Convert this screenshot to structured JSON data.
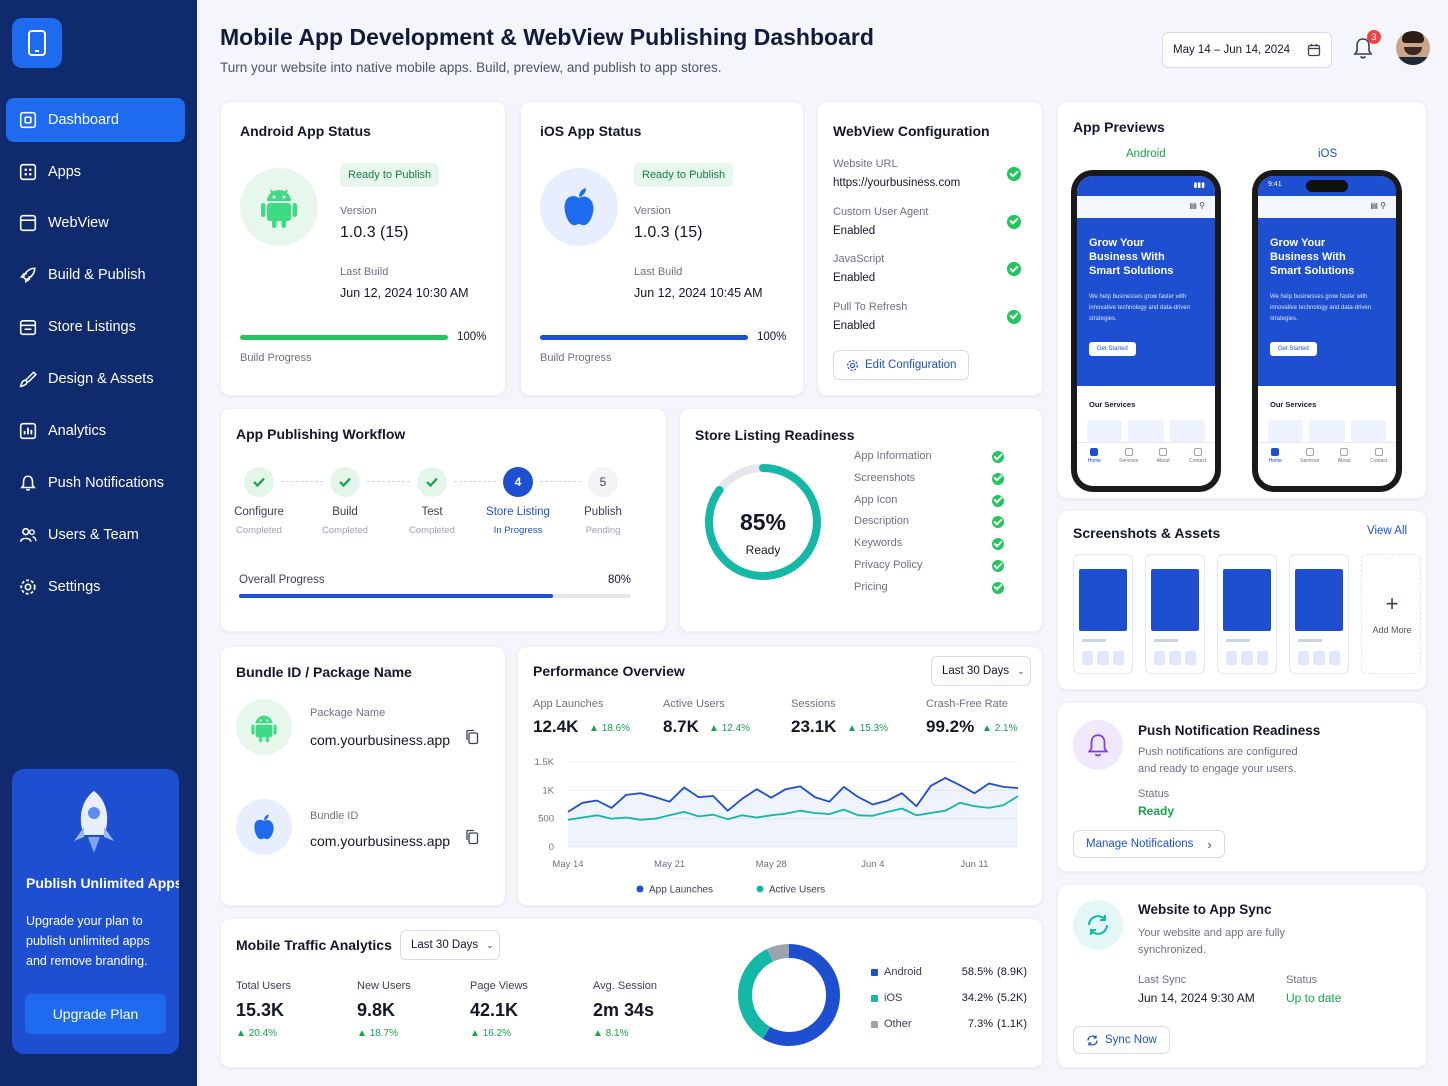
{
  "header": {
    "title": "Mobile App Development & WebView Publishing Dashboard",
    "subtitle": "Turn your website into native mobile apps. Build, preview, and publish to app stores.",
    "date_range": "May 14 – Jun 14, 2024",
    "notification_count": "3"
  },
  "sidebar": {
    "items": [
      {
        "label": "Dashboard",
        "icon": "dashboard-icon"
      },
      {
        "label": "Apps",
        "icon": "apps-icon"
      },
      {
        "label": "WebView",
        "icon": "webview-icon"
      },
      {
        "label": "Build & Publish",
        "icon": "rocket-icon"
      },
      {
        "label": "Store Listings",
        "icon": "store-icon"
      },
      {
        "label": "Design & Assets",
        "icon": "brush-icon"
      },
      {
        "label": "Analytics",
        "icon": "analytics-icon"
      },
      {
        "label": "Push Notifications",
        "icon": "bell-icon"
      },
      {
        "label": "Users & Team",
        "icon": "users-icon"
      },
      {
        "label": "Settings",
        "icon": "gear-icon"
      }
    ],
    "promo": {
      "title": "Publish Unlimited Apps",
      "text": "Upgrade your plan to publish unlimited apps and remove branding.",
      "button": "Upgrade Plan"
    }
  },
  "android_status": {
    "title": "Android App Status",
    "badge": "Ready to Publish",
    "version_label": "Version",
    "version": "1.0.3 (15)",
    "build_label": "Last Build",
    "build": "Jun 12, 2024 10:30 AM",
    "progress_pct": "100%",
    "progress": 1.0,
    "progress_label": "Build Progress"
  },
  "ios_status": {
    "title": "iOS App Status",
    "badge": "Ready to Publish",
    "version_label": "Version",
    "version": "1.0.3 (15)",
    "build_label": "Last Build",
    "build": "Jun 12, 2024 10:45 AM",
    "progress_pct": "100%",
    "progress": 1.0,
    "progress_label": "Build Progress"
  },
  "webview": {
    "title": "WebView Configuration",
    "items": [
      {
        "label": "Website URL",
        "value": "https://yourbusiness.com"
      },
      {
        "label": "Custom User Agent",
        "value": "Enabled"
      },
      {
        "label": "JavaScript",
        "value": "Enabled"
      },
      {
        "label": "Pull To Refresh",
        "value": "Enabled"
      }
    ],
    "button": "Edit Configuration"
  },
  "previews": {
    "title": "App Previews",
    "android_label": "Android",
    "ios_label": "iOS",
    "hero": "Grow Your Business With Smart Solutions",
    "hero_text": "We help businesses grow faster with innovative technology and data-driven strategies.",
    "cta": "Get Started",
    "services": "Our Services",
    "ios_time": "9:41",
    "tabs": [
      "Home",
      "Services",
      "About",
      "Contact"
    ]
  },
  "workflow": {
    "title": "App Publishing Workflow",
    "steps": [
      {
        "label": "Configure",
        "status": "Completed"
      },
      {
        "label": "Build",
        "status": "Completed"
      },
      {
        "label": "Test",
        "status": "Completed"
      },
      {
        "label": "Store Listing",
        "status": "In Progress",
        "num": "4"
      },
      {
        "label": "Publish",
        "status": "Pending",
        "num": "5"
      }
    ],
    "overall_label": "Overall Progress",
    "overall_pct": "80%",
    "overall": 0.8
  },
  "readiness": {
    "title": "Store Listing Readiness",
    "percent": "85%",
    "percent_value": 0.85,
    "ready_label": "Ready",
    "items": [
      "App Information",
      "Screenshots",
      "App Icon",
      "Description",
      "Keywords",
      "Privacy Policy",
      "Pricing"
    ]
  },
  "screenshots": {
    "title": "Screenshots & Assets",
    "view_all": "View All",
    "add_more": "Add More"
  },
  "bundle": {
    "title": "Bundle ID / Package Name",
    "package_label": "Package Name",
    "package": "com.yourbusiness.app",
    "bundle_label": "Bundle ID",
    "bundle": "com.yourbusiness.app"
  },
  "performance": {
    "title": "Performance Overview",
    "range": "Last 30 Days",
    "metrics": [
      {
        "label": "App Launches",
        "value": "12.4K",
        "change": "18.6%"
      },
      {
        "label": "Active Users",
        "value": "8.7K",
        "change": "12.4%"
      },
      {
        "label": "Sessions",
        "value": "23.1K",
        "change": "15.3%"
      },
      {
        "label": "Crash-Free Rate",
        "value": "99.2%",
        "change": "2.1%"
      }
    ]
  },
  "push": {
    "title": "Push Notification Readiness",
    "text": "Push notifications are configured and ready to engage your users.",
    "status_label": "Status",
    "status": "Ready",
    "button": "Manage Notifications"
  },
  "traffic": {
    "title": "Mobile Traffic Analytics",
    "range": "Last 30 Days",
    "metrics": [
      {
        "label": "Total Users",
        "value": "15.3K",
        "change": "20.4%"
      },
      {
        "label": "New Users",
        "value": "9.8K",
        "change": "18.7%"
      },
      {
        "label": "Page Views",
        "value": "42.1K",
        "change": "16.2%"
      },
      {
        "label": "Avg. Session",
        "value": "2m 34s",
        "change": "8.1%"
      }
    ],
    "legend": [
      {
        "name": "Android",
        "pct": "58.5%",
        "count": "(8.9K)",
        "color": "#1d4fd0"
      },
      {
        "name": "iOS",
        "pct": "34.2%",
        "count": "(5.2K)",
        "color": "#14b8a6"
      },
      {
        "name": "Other",
        "pct": "7.3%",
        "count": "(1.1K)",
        "color": "#9ca3af"
      }
    ]
  },
  "sync": {
    "title": "Website to App Sync",
    "text": "Your website and app are fully synchronized.",
    "last_label": "Last Sync",
    "last": "Jun 14, 2024 9:30 AM",
    "status_label": "Status",
    "status": "Up to date",
    "button": "Sync Now"
  },
  "chart_data": [
    {
      "type": "line",
      "x": [
        "May 14",
        "May 15",
        "May 16",
        "May 17",
        "May 18",
        "May 19",
        "May 20",
        "May 21",
        "May 22",
        "May 23",
        "May 24",
        "May 25",
        "May 26",
        "May 27",
        "May 28",
        "May 29",
        "May 30",
        "May 31",
        "Jun 1",
        "Jun 2",
        "Jun 3",
        "Jun 4",
        "Jun 5",
        "Jun 6",
        "Jun 7",
        "Jun 8",
        "Jun 9",
        "Jun 10",
        "Jun 11",
        "Jun 12",
        "Jun 13",
        "Jun 14"
      ],
      "xticks": [
        "May 14",
        "May 21",
        "May 28",
        "Jun 4",
        "Jun 11"
      ],
      "yticks": [
        "0",
        "500",
        "1K",
        "1.5K"
      ],
      "ylim": [
        0,
        1500
      ],
      "grid": true,
      "legend_position": "bottom",
      "series": [
        {
          "name": "App Launches",
          "color": "#1d4fd0",
          "values": [
            620,
            780,
            820,
            690,
            920,
            950,
            880,
            800,
            1050,
            880,
            900,
            640,
            850,
            1020,
            870,
            1020,
            1070,
            880,
            800,
            1060,
            880,
            750,
            820,
            950,
            720,
            1080,
            1220,
            1090,
            950,
            1120,
            1060,
            1040
          ]
        },
        {
          "name": "Active Users",
          "color": "#14b8a6",
          "values": [
            480,
            520,
            560,
            500,
            520,
            480,
            500,
            560,
            620,
            540,
            570,
            490,
            560,
            520,
            560,
            590,
            640,
            600,
            580,
            660,
            560,
            550,
            620,
            680,
            560,
            600,
            640,
            780,
            720,
            690,
            740,
            900
          ]
        }
      ]
    },
    {
      "type": "pie",
      "categories": [
        "Android",
        "iOS",
        "Other"
      ],
      "values": [
        58.5,
        34.2,
        7.3
      ]
    }
  ]
}
